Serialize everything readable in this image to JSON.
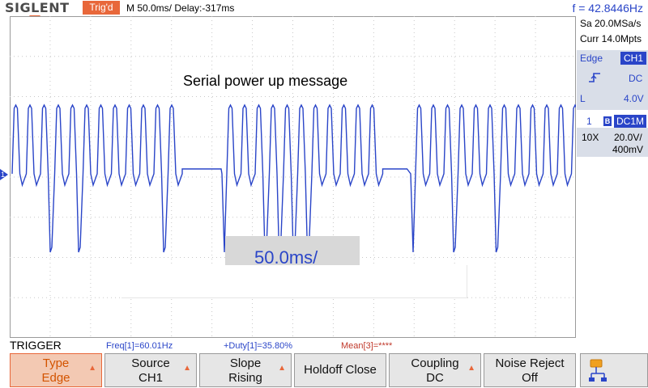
{
  "header": {
    "brand": "SIGLENT",
    "trigger_status": "Trig'd",
    "timebase": "M 50.0ms/ Delay:-317ms",
    "frequency": "f = 42.8446Hz"
  },
  "plot": {
    "title": "Serial power up message",
    "timebase_overlay": "50.0ms/",
    "channel_marker": "1"
  },
  "right_panel": {
    "sample_rate": "Sa 20.0MSa/s",
    "memory_depth": "Curr 14.0Mpts",
    "trigger": {
      "type": "Edge",
      "source": "CH1",
      "coupling": "DC",
      "level_label": "L",
      "level": "4.0V"
    },
    "channel": {
      "number": "1",
      "bw_icon": "B",
      "coupling": "DC1M",
      "probe": "10X",
      "scale": "20.0V/",
      "offset": "400mV"
    }
  },
  "bottom": {
    "menu_title": "TRIGGER",
    "measurements": {
      "freq": "Freq[1]=60.01Hz",
      "duty": "+Duty[1]=35.80%",
      "mean": "Mean[3]=****"
    },
    "softkeys": [
      {
        "line1": "Type",
        "line2": "Edge"
      },
      {
        "line1": "Source",
        "line2": "CH1"
      },
      {
        "line1": "Slope",
        "line2": "Rising"
      },
      {
        "label": "Holdoff Close"
      },
      {
        "line1": "Coupling",
        "line2": "DC"
      },
      {
        "line1": "Noise Reject",
        "line2": "Off"
      }
    ],
    "updown_glyph": "▲"
  },
  "colors": {
    "trace": "#2a45c8",
    "accent": "#e8673a",
    "grid": "#c8c8c8"
  },
  "icons": {
    "trigger_position": "trigger-position-icon",
    "rising_edge": "rising-edge-icon",
    "network": "network-icon"
  }
}
